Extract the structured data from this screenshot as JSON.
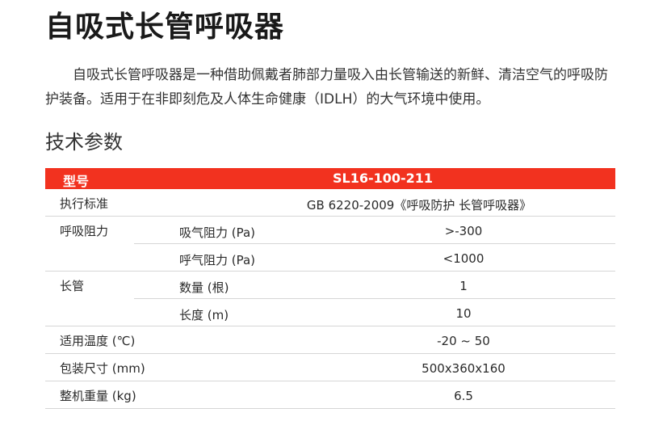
{
  "title": "自吸式长管呼吸器",
  "intro": "自吸式长管呼吸器是一种借助佩戴者肺部力量吸入由长管输送的新鲜、清洁空气的呼吸防护装备。适用于在非即刻危及人体生命健康（IDLH）的大气环境中使用。",
  "section_title": "技术参数",
  "colors": {
    "header_bg": "#f2321f"
  },
  "table": {
    "header": {
      "key": "型号",
      "value": "SL16-100-211"
    },
    "rows": [
      {
        "c1": "执行标准",
        "c2": "",
        "c3": "GB 6220-2009《呼吸防护 长管呼吸器》",
        "line": "full",
        "wide": true
      },
      {
        "c1": "呼吸阻力",
        "c2": "吸气阻力 (Pa)",
        "c3": ">-300",
        "line": "part"
      },
      {
        "c1": "",
        "c2": "呼气阻力 (Pa)",
        "c3": "<1000",
        "line": "full"
      },
      {
        "c1": "长管",
        "c2": "数量 (根)",
        "c3": "1",
        "line": "part"
      },
      {
        "c1": "",
        "c2": "长度 (m)",
        "c3": "10",
        "line": "full"
      },
      {
        "c1": "适用温度 (℃)",
        "c2": "",
        "c3": "-20 ~ 50",
        "line": "full"
      },
      {
        "c1": "包装尺寸 (mm)",
        "c2": "",
        "c3": "500x360x160",
        "line": "full"
      },
      {
        "c1": "整机重量 (kg)",
        "c2": "",
        "c3": "6.5",
        "line": "full"
      }
    ]
  }
}
